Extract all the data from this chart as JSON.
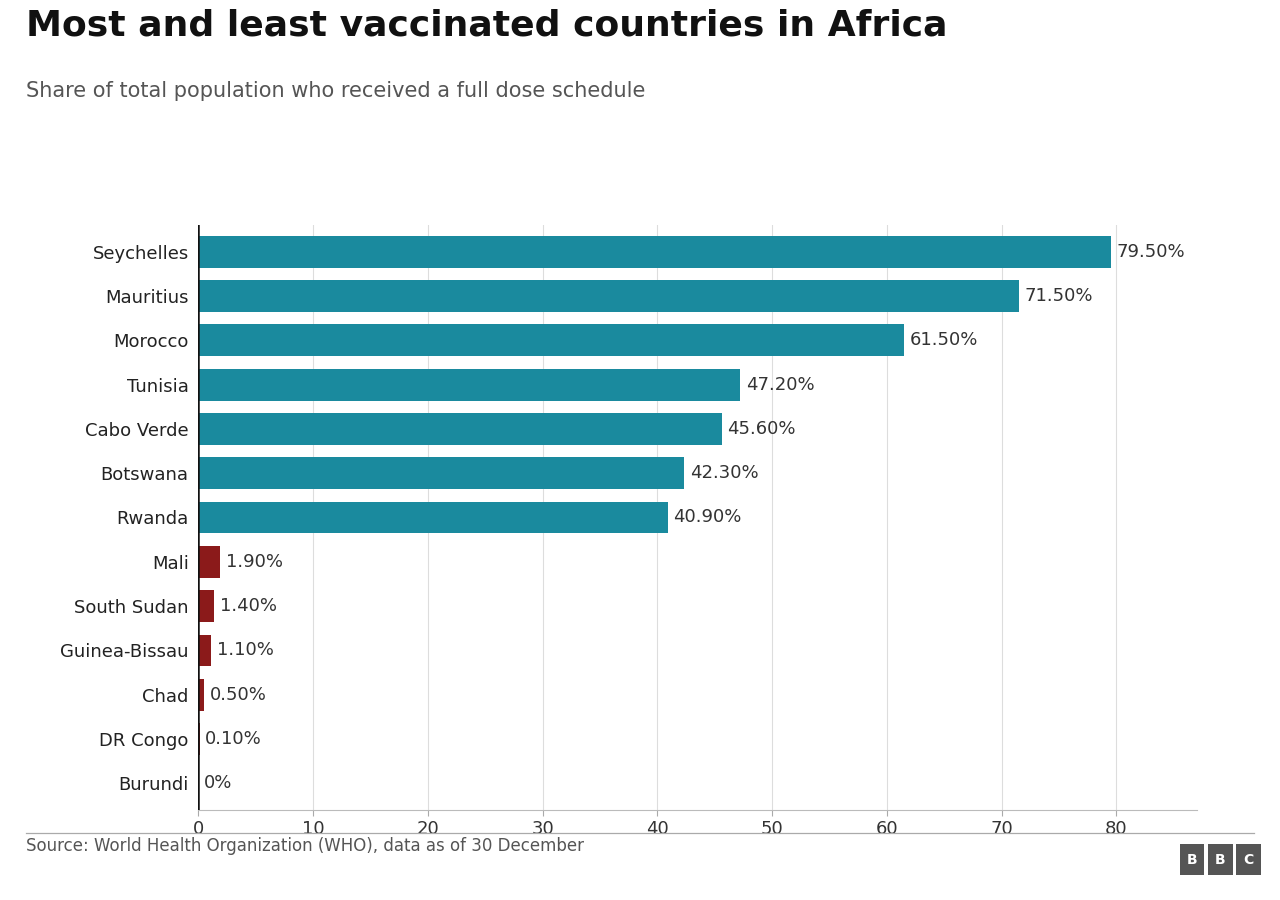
{
  "title": "Most and least vaccinated countries in Africa",
  "subtitle": "Share of total population who received a full dose schedule",
  "source": "Source: World Health Organization (WHO), data as of 30 December",
  "categories": [
    "Seychelles",
    "Mauritius",
    "Morocco",
    "Tunisia",
    "Cabo Verde",
    "Botswana",
    "Rwanda",
    "Mali",
    "South Sudan",
    "Guinea-Bissau",
    "Chad",
    "DR Congo",
    "Burundi"
  ],
  "values": [
    79.5,
    71.5,
    61.5,
    47.2,
    45.6,
    42.3,
    40.9,
    1.9,
    1.4,
    1.1,
    0.5,
    0.1,
    0.0
  ],
  "labels": [
    "79.50%",
    "71.50%",
    "61.50%",
    "47.20%",
    "45.60%",
    "42.30%",
    "40.90%",
    "1.90%",
    "1.40%",
    "1.10%",
    "0.50%",
    "0.10%",
    "0%"
  ],
  "colors": [
    "#1a8a9e",
    "#1a8a9e",
    "#1a8a9e",
    "#1a8a9e",
    "#1a8a9e",
    "#1a8a9e",
    "#1a8a9e",
    "#8b1a1a",
    "#8b1a1a",
    "#8b1a1a",
    "#8b1a1a",
    "#8b1a1a",
    "#8b1a1a"
  ],
  "xlim": [
    0,
    87
  ],
  "xticks": [
    0,
    10,
    20,
    30,
    40,
    50,
    60,
    70,
    80
  ],
  "background_color": "#ffffff",
  "title_fontsize": 26,
  "subtitle_fontsize": 15,
  "label_fontsize": 13,
  "tick_fontsize": 13,
  "source_fontsize": 12,
  "bar_height": 0.72
}
